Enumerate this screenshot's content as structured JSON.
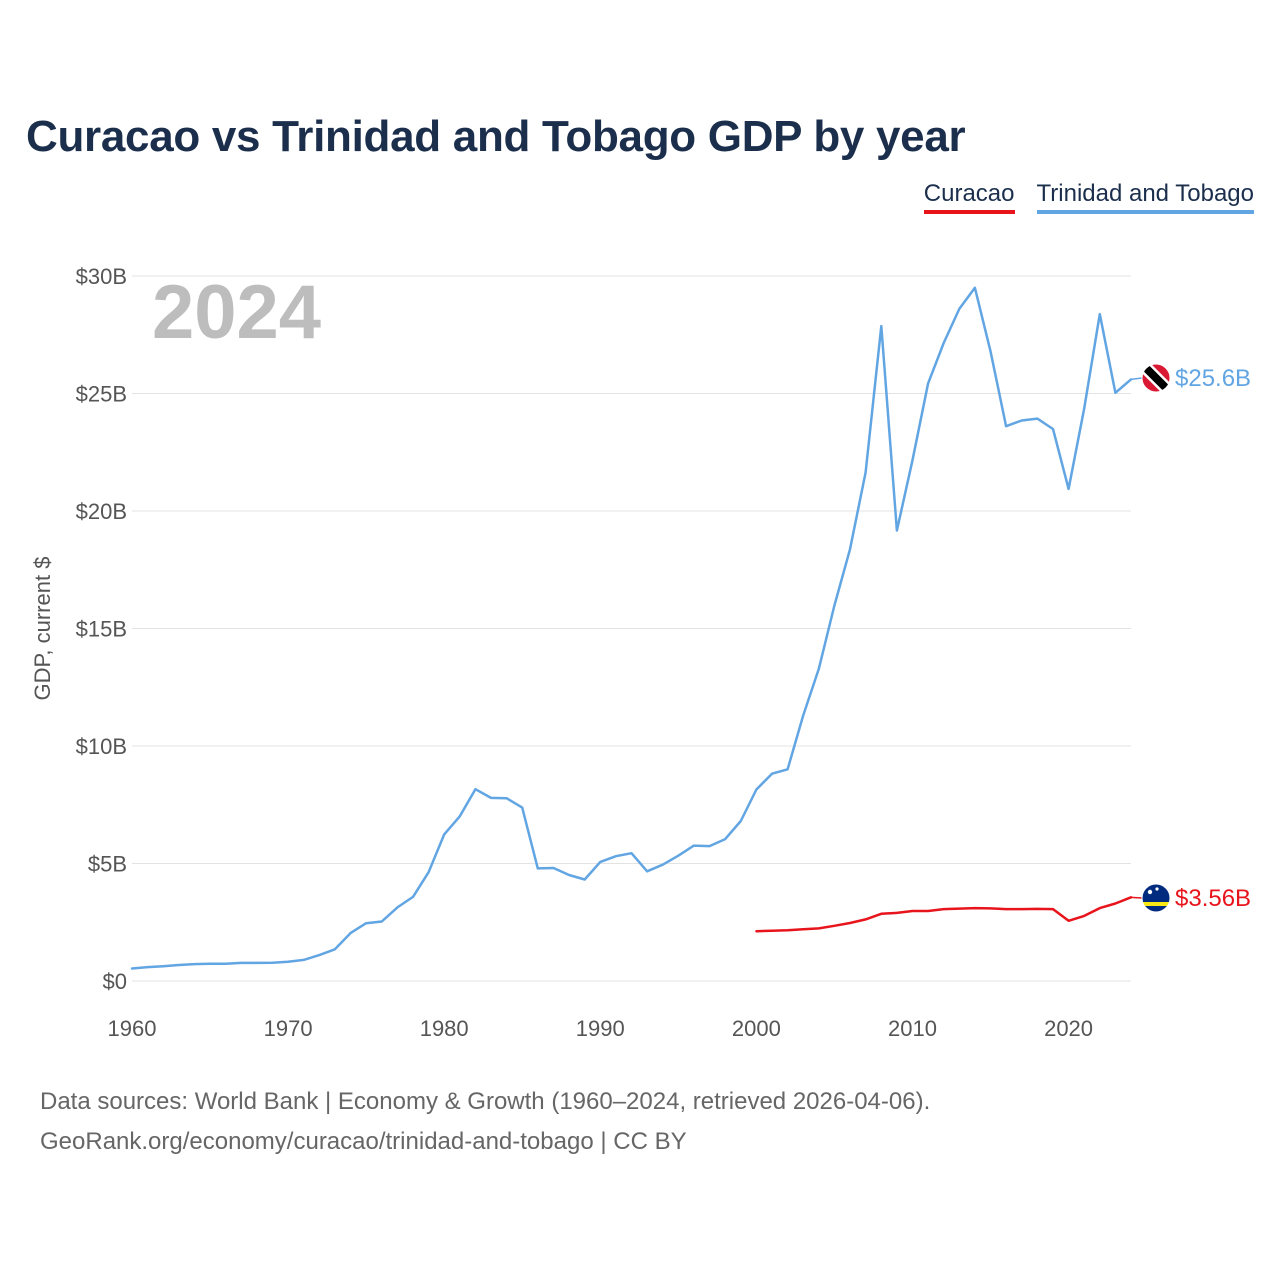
{
  "chart_data": {
    "type": "line",
    "title": "Curacao vs Trinidad and Tobago GDP by year",
    "ylabel": "GDP, current $",
    "xlabel": "",
    "year_label": "2024",
    "xlim": [
      1960,
      2024
    ],
    "ylim": [
      0,
      30
    ],
    "x_ticks": [
      1960,
      1970,
      1980,
      1990,
      2000,
      2010,
      2020
    ],
    "x_tick_labels": [
      "1960",
      "1970",
      "1980",
      "1990",
      "2000",
      "2010",
      "2020"
    ],
    "y_ticks": [
      0,
      5,
      10,
      15,
      20,
      25,
      30
    ],
    "y_tick_labels": [
      "$0",
      "$5B",
      "$10B",
      "$15B",
      "$20B",
      "$25B",
      "$30B"
    ],
    "grid": true,
    "legend_position": "top-right",
    "series": [
      {
        "name": "Curacao",
        "color": "#e8141c",
        "end_label": "$3.56B",
        "flag_icon": "curacao-flag-icon",
        "x": [
          2000,
          2001,
          2002,
          2003,
          2004,
          2005,
          2006,
          2007,
          2008,
          2009,
          2010,
          2011,
          2012,
          2013,
          2014,
          2015,
          2016,
          2017,
          2018,
          2019,
          2020,
          2021,
          2022,
          2023,
          2024
        ],
        "values": [
          2.12,
          2.14,
          2.16,
          2.2,
          2.24,
          2.35,
          2.47,
          2.62,
          2.86,
          2.9,
          2.98,
          2.98,
          3.06,
          3.08,
          3.1,
          3.09,
          3.06,
          3.06,
          3.07,
          3.06,
          2.56,
          2.77,
          3.1,
          3.3,
          3.56
        ]
      },
      {
        "name": "Trinidad and Tobago",
        "color": "#62a5e3",
        "end_label": "$25.6B",
        "flag_icon": "trinidad-flag-icon",
        "x": [
          1960,
          1961,
          1962,
          1963,
          1964,
          1965,
          1966,
          1967,
          1968,
          1969,
          1970,
          1971,
          1972,
          1973,
          1974,
          1975,
          1976,
          1977,
          1978,
          1979,
          1980,
          1981,
          1982,
          1983,
          1984,
          1985,
          1986,
          1987,
          1988,
          1989,
          1990,
          1991,
          1992,
          1993,
          1994,
          1995,
          1996,
          1997,
          1998,
          1999,
          2000,
          2001,
          2002,
          2003,
          2004,
          2005,
          2006,
          2007,
          2008,
          2009,
          2010,
          2011,
          2012,
          2013,
          2014,
          2015,
          2016,
          2017,
          2018,
          2019,
          2020,
          2021,
          2022,
          2023,
          2024
        ],
        "values": [
          0.53,
          0.59,
          0.63,
          0.68,
          0.72,
          0.73,
          0.73,
          0.77,
          0.77,
          0.78,
          0.82,
          0.9,
          1.1,
          1.35,
          2.04,
          2.46,
          2.53,
          3.13,
          3.58,
          4.63,
          6.24,
          7.01,
          8.16,
          7.79,
          7.78,
          7.38,
          4.79,
          4.81,
          4.51,
          4.32,
          5.07,
          5.31,
          5.44,
          4.67,
          4.95,
          5.33,
          5.76,
          5.74,
          6.04,
          6.81,
          8.15,
          8.82,
          9.01,
          11.3,
          13.28,
          15.98,
          18.37,
          21.64,
          27.87,
          19.17,
          22.16,
          25.43,
          27.15,
          28.6,
          29.5,
          26.8,
          23.61,
          23.85,
          23.93,
          23.49,
          20.94,
          24.36,
          28.38,
          25.03,
          25.6
        ]
      }
    ]
  },
  "footer": {
    "sources": "Data sources: World Bank | Economy & Growth (1960–2024, retrieved 2026-04-06).",
    "credit": "GeoRank.org/economy/curacao/trinidad-and-tobago | CC BY"
  }
}
